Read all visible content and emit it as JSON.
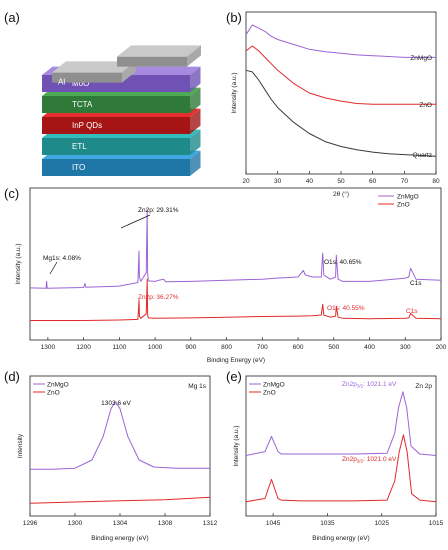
{
  "panel_labels": [
    "(a)",
    "(b)",
    "(c)",
    "(d)",
    "(e)"
  ],
  "device_stack": {
    "layers": [
      {
        "label": "Al",
        "color": "#c9c9c9",
        "side": "#8f8f8f"
      },
      {
        "label": "MoO",
        "color": "#a78be0",
        "side": "#6f52b3"
      },
      {
        "label": "TCTA",
        "color": "#4faa55",
        "side": "#2f7a38"
      },
      {
        "label": "InP QDs",
        "color": "#e63030",
        "side": "#a51515"
      },
      {
        "label": "ETL",
        "color": "#33bcbc",
        "side": "#1e8a8a"
      },
      {
        "label": "ITO",
        "color": "#3fa8e0",
        "side": "#1f77a8"
      }
    ]
  },
  "colors": {
    "ZnMgO": "#9b64d6",
    "ZnO": "#e02a2a",
    "Quartz": "#3a3a3a"
  },
  "chart_data": [
    {
      "panel": "(b)",
      "type": "line",
      "xlabel": "2θ (°)",
      "ylabel": "Intensity (a.u.)",
      "xlim": [
        20,
        80
      ],
      "xticks": [
        20,
        30,
        40,
        50,
        60,
        70,
        80
      ],
      "series": [
        {
          "name": "ZnMgO",
          "color": "#9b64d6",
          "x": [
            20,
            22,
            24,
            26,
            28,
            30,
            35,
            40,
            45,
            50,
            55,
            60,
            65,
            70,
            75,
            80
          ],
          "y": [
            8.6,
            9.2,
            9.0,
            8.8,
            8.5,
            8.3,
            8.0,
            7.7,
            7.55,
            7.45,
            7.35,
            7.3,
            7.25,
            7.2,
            7.2,
            7.2
          ]
        },
        {
          "name": "ZnO",
          "color": "#e02a2a",
          "x": [
            20,
            22,
            24,
            26,
            28,
            30,
            35,
            40,
            45,
            50,
            55,
            60,
            65,
            70,
            75,
            80
          ],
          "y": [
            7.6,
            7.9,
            7.6,
            7.2,
            6.8,
            6.4,
            5.6,
            5.0,
            4.7,
            4.5,
            4.35,
            4.3,
            4.3,
            4.3,
            4.3,
            4.3
          ]
        },
        {
          "name": "Quartz",
          "color": "#3a3a3a",
          "x": [
            20,
            22,
            24,
            26,
            28,
            30,
            35,
            40,
            45,
            50,
            55,
            60,
            65,
            70,
            75,
            80
          ],
          "y": [
            6.4,
            6.3,
            5.8,
            5.2,
            4.6,
            4.1,
            3.2,
            2.5,
            2.0,
            1.7,
            1.5,
            1.35,
            1.25,
            1.2,
            1.15,
            1.1
          ]
        }
      ]
    },
    {
      "panel": "(c)",
      "type": "line",
      "xlabel": "Binding Energy (eV)",
      "ylabel": "Intensity (a.u.)",
      "xlim": [
        1350,
        200
      ],
      "xticks": [
        1300,
        1200,
        1100,
        1000,
        900,
        800,
        700,
        600,
        500,
        400,
        300,
        200
      ],
      "legend": [
        "ZnMgO",
        "ZnO"
      ],
      "series": [
        {
          "name": "ZnMgO",
          "color": "#9b64d6",
          "x": [
            1350,
            1305,
            1303.6,
            1302,
            1200,
            1196,
            1194,
            1100,
            1048,
            1045,
            1044,
            1040,
            1025,
            1022,
            1021,
            1019,
            1000,
            990,
            976,
            970,
            900,
            800,
            700,
            660,
            600,
            585,
            580,
            560,
            535,
            531,
            528,
            510,
            495,
            493,
            488,
            475,
            400,
            300,
            290,
            285,
            270,
            200
          ],
          "y": [
            1.6,
            1.58,
            1.9,
            1.58,
            1.62,
            1.8,
            1.63,
            1.68,
            1.85,
            3.3,
            2.1,
            1.9,
            2.3,
            5.2,
            2.3,
            1.92,
            1.9,
            1.95,
            2.0,
            1.88,
            1.9,
            1.95,
            2.0,
            2.05,
            2.1,
            2.4,
            2.2,
            2.1,
            2.1,
            3.2,
            2.2,
            2.0,
            2.1,
            3.1,
            2.0,
            1.9,
            1.9,
            2.05,
            2.1,
            2.5,
            2.0,
            1.95
          ]
        },
        {
          "name": "ZnO",
          "color": "#e02a2a",
          "x": [
            1350,
            1200,
            1100,
            1048,
            1045,
            1044,
            1040,
            1025,
            1022,
            1021,
            1019,
            1000,
            900,
            800,
            700,
            600,
            560,
            535,
            531,
            528,
            510,
            495,
            493,
            488,
            475,
            400,
            300,
            290,
            285,
            270,
            200
          ],
          "y": [
            0.1,
            0.1,
            0.12,
            0.15,
            1.05,
            0.3,
            0.2,
            0.4,
            2.0,
            0.35,
            0.22,
            0.2,
            0.22,
            0.25,
            0.28,
            0.3,
            0.32,
            0.35,
            0.85,
            0.35,
            0.25,
            0.3,
            0.75,
            0.25,
            0.2,
            0.18,
            0.2,
            0.22,
            0.42,
            0.2,
            0.18
          ]
        }
      ],
      "annotations": [
        {
          "text": "Zn2p: 29.31%",
          "color": "#111111"
        },
        {
          "text": "Mg1s: 4.08%",
          "color": "#111111"
        },
        {
          "text": "O1s: 40.65%",
          "color": "#111111"
        },
        {
          "text": "C1s",
          "color": "#111111"
        },
        {
          "text": "Zn2p: 36.27%",
          "color": "#e02a2a"
        },
        {
          "text": "O1s: 40.55%",
          "color": "#e02a2a"
        },
        {
          "text": "C1s",
          "color": "#e02a2a"
        }
      ]
    },
    {
      "panel": "(d)",
      "type": "line",
      "title": "Mg 1s",
      "xlabel": "Binding energy (eV)",
      "ylabel": "Intensity",
      "xlim": [
        1296,
        1312
      ],
      "xticks": [
        1296,
        1300,
        1304,
        1308,
        1312
      ],
      "legend": [
        "ZnMgO",
        "ZnO"
      ],
      "series": [
        {
          "name": "ZnMgO",
          "color": "#9b64d6",
          "x": [
            1296,
            1298,
            1300,
            1301.5,
            1302.5,
            1303.2,
            1303.6,
            1304.0,
            1304.7,
            1305.7,
            1307,
            1309,
            1312
          ],
          "y": [
            2.0,
            2.0,
            2.05,
            2.4,
            3.4,
            4.6,
            4.9,
            4.6,
            3.4,
            2.4,
            2.1,
            2.05,
            2.05
          ]
        },
        {
          "name": "ZnO",
          "color": "#e02a2a",
          "x": [
            1296,
            1300,
            1304,
            1308,
            1312
          ],
          "y": [
            0.55,
            0.6,
            0.65,
            0.7,
            0.8
          ]
        }
      ],
      "annotations": [
        {
          "text": "1303.6 eV",
          "color": "#111111"
        }
      ]
    },
    {
      "panel": "(e)",
      "type": "line",
      "title": "Zn 2p",
      "xlabel": "Binding energy (eV)",
      "ylabel": "Intensity (a.u.)",
      "xlim": [
        1050,
        1015
      ],
      "xticks": [
        1045,
        1035,
        1025,
        1015
      ],
      "legend": [
        "ZnMgO",
        "ZnO"
      ],
      "series": [
        {
          "name": "ZnMgO",
          "color": "#9b64d6",
          "x": [
            1050,
            1046.5,
            1045.3,
            1044.1,
            1043.5,
            1040,
            1030,
            1024,
            1022.6,
            1021.9,
            1021.1,
            1020.4,
            1019.6,
            1018,
            1015
          ],
          "y": [
            3.2,
            3.45,
            4.4,
            3.45,
            3.3,
            3.3,
            3.3,
            3.35,
            4.6,
            6.2,
            7.2,
            6.2,
            3.8,
            3.3,
            3.2
          ]
        },
        {
          "name": "ZnO",
          "color": "#e02a2a",
          "x": [
            1050,
            1046.5,
            1045.3,
            1044.1,
            1043.5,
            1040,
            1030,
            1024,
            1022.6,
            1021.8,
            1021.0,
            1020.3,
            1019.5,
            1018,
            1015
          ],
          "y": [
            0.3,
            0.5,
            1.7,
            0.5,
            0.4,
            0.35,
            0.35,
            0.4,
            1.6,
            3.4,
            4.5,
            3.4,
            0.8,
            0.4,
            0.3
          ]
        }
      ],
      "annotations": [
        {
          "text": "Zn2p",
          "sub": "3/2",
          "tail": ": 1021.1 eV",
          "color": "#9b64d6"
        },
        {
          "text": "Zn2p",
          "sub": "3/2",
          "tail": ": 1021.0 eV",
          "color": "#e02a2a"
        }
      ]
    }
  ]
}
